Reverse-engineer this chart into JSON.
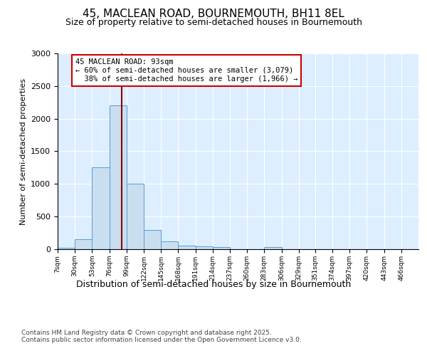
{
  "title1": "45, MACLEAN ROAD, BOURNEMOUTH, BH11 8EL",
  "title2": "Size of property relative to semi-detached houses in Bournemouth",
  "xlabel": "Distribution of semi-detached houses by size in Bournemouth",
  "ylabel": "Number of semi-detached properties",
  "bin_edges": [
    7,
    30,
    53,
    76,
    99,
    122,
    145,
    168,
    191,
    214,
    237,
    260,
    283,
    306,
    329,
    351,
    374,
    397,
    420,
    443,
    466
  ],
  "bar_heights": [
    25,
    150,
    1250,
    2200,
    1000,
    300,
    120,
    50,
    40,
    30,
    0,
    0,
    30,
    0,
    0,
    0,
    0,
    0,
    0,
    0
  ],
  "bar_color": "#c9dff0",
  "bar_edge_color": "#5b9bd5",
  "property_size": 93,
  "property_label": "45 MACLEAN ROAD: 93sqm",
  "smaller_pct": "60%",
  "smaller_count": "3,079",
  "larger_pct": "38%",
  "larger_count": "1,966",
  "vline_color": "#8b0000",
  "annotation_box_edge": "#cc0000",
  "ylim": [
    0,
    3000
  ],
  "yticks": [
    0,
    500,
    1000,
    1500,
    2000,
    2500,
    3000
  ],
  "footer1": "Contains HM Land Registry data © Crown copyright and database right 2025.",
  "footer2": "Contains public sector information licensed under the Open Government Licence v3.0.",
  "fig_bg_color": "#ffffff",
  "plot_bg_color": "#ddeeff",
  "grid_color": "#ffffff"
}
